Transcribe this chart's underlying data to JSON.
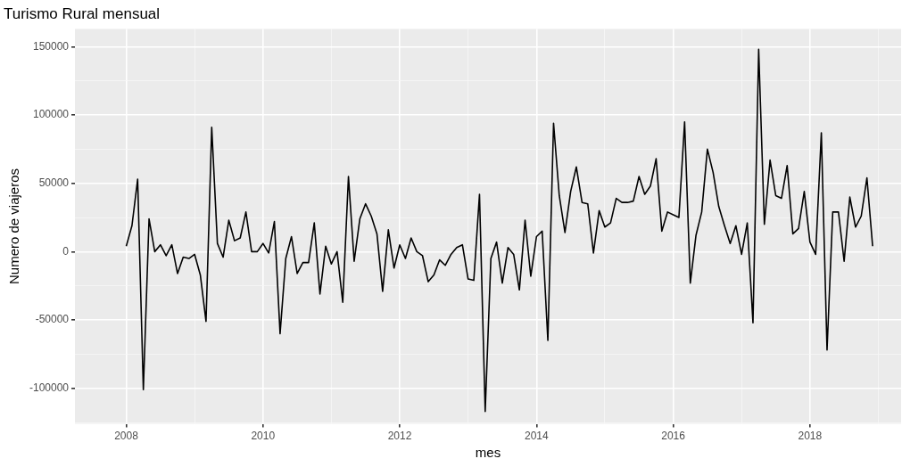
{
  "chart_data": {
    "type": "line",
    "title": "Turismo Rural mensual",
    "xlabel": "mes",
    "ylabel": "Numero de viajeros",
    "x": [
      "2008-01",
      "2008-02",
      "2008-03",
      "2008-04",
      "2008-05",
      "2008-06",
      "2008-07",
      "2008-08",
      "2008-09",
      "2008-10",
      "2008-11",
      "2008-12",
      "2009-01",
      "2009-02",
      "2009-03",
      "2009-04",
      "2009-05",
      "2009-06",
      "2009-07",
      "2009-08",
      "2009-09",
      "2009-10",
      "2009-11",
      "2009-12",
      "2010-01",
      "2010-02",
      "2010-03",
      "2010-04",
      "2010-05",
      "2010-06",
      "2010-07",
      "2010-08",
      "2010-09",
      "2010-10",
      "2010-11",
      "2010-12",
      "2011-01",
      "2011-02",
      "2011-03",
      "2011-04",
      "2011-05",
      "2011-06",
      "2011-07",
      "2011-08",
      "2011-09",
      "2011-10",
      "2011-11",
      "2011-12",
      "2012-01",
      "2012-02",
      "2012-03",
      "2012-04",
      "2012-05",
      "2012-06",
      "2012-07",
      "2012-08",
      "2012-09",
      "2012-10",
      "2012-11",
      "2012-12",
      "2013-01",
      "2013-02",
      "2013-03",
      "2013-04",
      "2013-05",
      "2013-06",
      "2013-07",
      "2013-08",
      "2013-09",
      "2013-10",
      "2013-11",
      "2013-12",
      "2014-01",
      "2014-02",
      "2014-03",
      "2014-04",
      "2014-05",
      "2014-06",
      "2014-07",
      "2014-08",
      "2014-09",
      "2014-10",
      "2014-11",
      "2014-12",
      "2015-01",
      "2015-02",
      "2015-03",
      "2015-04",
      "2015-05",
      "2015-06",
      "2015-07",
      "2015-08",
      "2015-09",
      "2015-10",
      "2015-11",
      "2015-12",
      "2016-01",
      "2016-02",
      "2016-03",
      "2016-04",
      "2016-05",
      "2016-06",
      "2016-07",
      "2016-08",
      "2016-09",
      "2016-10",
      "2016-11",
      "2016-12",
      "2017-01",
      "2017-02",
      "2017-03",
      "2017-04",
      "2017-05",
      "2017-06",
      "2017-07",
      "2017-08",
      "2017-09",
      "2017-10",
      "2017-11",
      "2017-12",
      "2018-01",
      "2018-02",
      "2018-03",
      "2018-04",
      "2018-05",
      "2018-06",
      "2018-07",
      "2018-08",
      "2018-09",
      "2018-10",
      "2018-11",
      "2018-12"
    ],
    "series": [
      {
        "color": "#000000",
        "values": [
          4000,
          19000,
          53000,
          -101000,
          24000,
          0,
          5000,
          -3000,
          5000,
          -16000,
          -4000,
          -5000,
          -2000,
          -17000,
          -51000,
          91000,
          6000,
          -4000,
          23000,
          8000,
          10000,
          29000,
          0,
          0,
          6000,
          -1000,
          22000,
          -60000,
          -5000,
          11000,
          -16000,
          -8000,
          -8000,
          21000,
          -31000,
          4000,
          -9000,
          0,
          -37000,
          55000,
          -7000,
          24000,
          35000,
          26000,
          13000,
          -29000,
          16000,
          -12000,
          5000,
          -5000,
          10000,
          0,
          -3000,
          -22000,
          -17000,
          -6000,
          -10000,
          -2000,
          3000,
          5000,
          -20000,
          -21000,
          42000,
          -117000,
          -5000,
          7000,
          -23000,
          3000,
          -2000,
          -28000,
          23000,
          -18000,
          11000,
          15000,
          -65000,
          94000,
          41000,
          14000,
          44000,
          62000,
          36000,
          35000,
          -1000,
          30000,
          18000,
          21000,
          39000,
          36000,
          36000,
          37000,
          55000,
          42000,
          48000,
          68000,
          15000,
          29000,
          27000,
          25000,
          95000,
          -23000,
          12000,
          29000,
          75000,
          58000,
          33000,
          19000,
          6000,
          19000,
          -2000,
          21000,
          -52000,
          148000,
          20000,
          67000,
          41000,
          39000,
          63000,
          13000,
          17000,
          44000,
          7000,
          -2000,
          87000,
          -72000,
          29000,
          29000,
          -7000,
          40000,
          18000,
          26000,
          54000,
          4000
        ]
      }
    ],
    "xlim": [
      "2007-04",
      "2019-05"
    ],
    "xticks": [
      "2008",
      {
        "value": "2009",
        "label": null
      },
      "2010",
      {
        "value": "2011",
        "label": null
      },
      "2012",
      {
        "value": "2013",
        "label": null
      },
      "2014",
      {
        "value": "2015",
        "label": null
      },
      "2016",
      {
        "value": "2017",
        "label": null
      },
      "2018",
      {
        "value": "2019",
        "label": null
      }
    ],
    "ylim": [
      -126000,
      163000
    ],
    "yticks": [
      {
        "value": -125000,
        "label": null
      },
      -100000,
      {
        "value": -75000,
        "label": null
      },
      -50000,
      {
        "value": -25000,
        "label": null
      },
      0,
      {
        "value": 25000,
        "label": null
      },
      50000,
      {
        "value": 75000,
        "label": null
      },
      100000,
      {
        "value": 125000,
        "label": null
      },
      150000
    ],
    "grid": true,
    "legend": false,
    "marker": "none",
    "line_style": "solid"
  }
}
